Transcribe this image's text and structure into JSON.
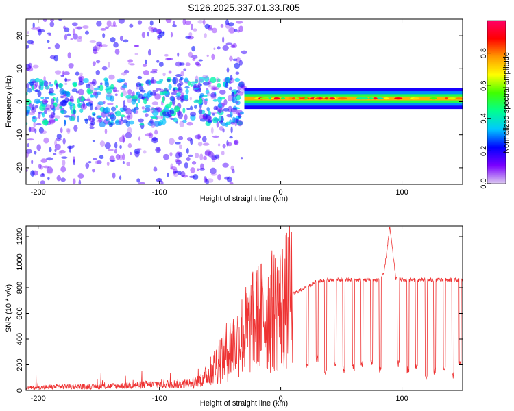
{
  "figure_title": "S126.2025.337.01.33.R05",
  "chart_data": [
    {
      "type": "heatmap",
      "title": "",
      "xlabel": "Height of straight line (km)",
      "ylabel": "Frequency (Hz)",
      "xlim": [
        -210,
        150
      ],
      "ylim": [
        -25,
        25
      ],
      "xticks": [
        -200,
        -100,
        0,
        100
      ],
      "yticks": [
        -20,
        -10,
        0,
        10,
        20
      ],
      "colorbar": {
        "label": "Normalized spectral amplitude",
        "range": [
          0.0,
          1.0
        ],
        "ticks": [
          0.0,
          0.2,
          0.4,
          0.6,
          0.8
        ],
        "tick_labels": [
          "0.0",
          "0.2",
          "0.4",
          "0.6",
          "0.8"
        ],
        "colormap": [
          "#dccbf0",
          "#7a00ff",
          "#0000ff",
          "#00c8ff",
          "#00ff90",
          "#40ff00",
          "#ffff00",
          "#ff9900",
          "#ff0000",
          "#ff0066"
        ]
      },
      "carrier_line": {
        "description_free": true,
        "x_start": -30,
        "x_end": 150,
        "frequency": 1,
        "amplitude_range": [
          0.4,
          0.95
        ]
      },
      "scatter_region": {
        "x_start": -210,
        "x_end": -30,
        "frequency_spread": 25,
        "amplitude_range": [
          0.05,
          0.35
        ]
      }
    },
    {
      "type": "line",
      "title": "",
      "xlabel": "Height of straight line (km)",
      "ylabel": "SNR (10 * v/v)",
      "xlim": [
        -210,
        150
      ],
      "ylim": [
        0,
        1280
      ],
      "xticks": [
        -200,
        -100,
        0,
        100
      ],
      "yticks": [
        0,
        200,
        400,
        600,
        800,
        1000,
        1200
      ],
      "color": "#ee3333",
      "series": [
        {
          "name": "SNR",
          "x": [
            -210,
            -180,
            -150,
            -120,
            -100,
            -80,
            -70,
            -60,
            -50,
            -40,
            -30,
            -20,
            -10,
            0,
            10,
            20,
            30,
            40,
            50,
            60,
            70,
            80,
            85,
            90,
            95,
            100,
            110,
            120,
            130,
            140,
            150
          ],
          "values": [
            20,
            30,
            30,
            40,
            50,
            50,
            60,
            120,
            250,
            350,
            450,
            550,
            600,
            650,
            750,
            800,
            850,
            860,
            860,
            860,
            860,
            860,
            900,
            1270,
            870,
            860,
            860,
            860,
            860,
            860,
            860
          ],
          "dropout_x": [
            22,
            30,
            37,
            45,
            52,
            60,
            67,
            75,
            82,
            97,
            105,
            112,
            120,
            127,
            135,
            142,
            148
          ],
          "dropout_values": [
            200,
            250,
            150,
            220,
            160,
            180,
            200,
            220,
            170,
            210,
            160,
            180,
            100,
            150,
            180,
            120,
            200
          ]
        }
      ]
    }
  ]
}
